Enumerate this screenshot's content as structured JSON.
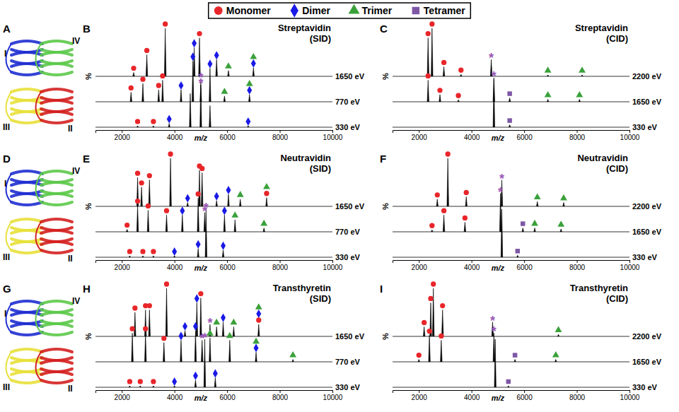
{
  "legend": [
    {
      "name": "Monomer",
      "color": "#e8262a",
      "marker": "circle"
    },
    {
      "name": "Dimer",
      "color": "#1a1ae6",
      "marker": "diamond"
    },
    {
      "name": "Trimer",
      "color": "#3aa13a",
      "marker": "triangle"
    },
    {
      "name": "Tetramer",
      "color": "#7e57a6",
      "marker": "square"
    }
  ],
  "structures": [
    {
      "panel": "A",
      "subunits": [
        {
          "label": "I",
          "color": "#1f2fd0"
        },
        {
          "label": "IV",
          "color": "#5cc94a"
        },
        {
          "label": "III",
          "color": "#e8e03a"
        },
        {
          "label": "II",
          "color": "#d42020"
        }
      ]
    },
    {
      "panel": "D",
      "subunits": [
        {
          "label": "I",
          "color": "#1f2fd0"
        },
        {
          "label": "IV",
          "color": "#5cc94a"
        },
        {
          "label": "III",
          "color": "#e8e03a"
        },
        {
          "label": "II",
          "color": "#d42020"
        }
      ]
    },
    {
      "panel": "G",
      "subunits": [
        {
          "label": "I",
          "color": "#1f2fd0"
        },
        {
          "label": "IV",
          "color": "#5cc94a"
        },
        {
          "label": "III",
          "color": "#e8e03a"
        },
        {
          "label": "II",
          "color": "#d42020"
        }
      ]
    }
  ],
  "chart_data": [
    {
      "type": "spectrum",
      "panel": "B",
      "title": "Streptavidin (SID)",
      "xlabel": "m/z",
      "ylabel": "%",
      "xlim": [
        1000,
        10000
      ],
      "xticks": [
        2000,
        4000,
        6000,
        8000,
        10000
      ],
      "ylim": [
        0,
        100
      ],
      "tick_labels": "x",
      "series": [
        {
          "name": "1650 eV",
          "x": [
            2450,
            2950,
            3650,
            4750,
            4950,
            5600,
            6050,
            7000
          ],
          "values": [
            8,
            45,
            100,
            60,
            80,
            35,
            12,
            18
          ],
          "species": [
            [
              "Monomer"
            ],
            [
              "Monomer"
            ],
            [
              "Monomer"
            ],
            [
              "Dimer"
            ],
            [
              "Monomer"
            ],
            [
              "Dimer"
            ],
            [
              "Trimer"
            ],
            [
              "Dimer",
              "Trimer"
            ]
          ]
        },
        {
          "name": "770 eV",
          "x": [
            2350,
            2800,
            3400,
            3550,
            4250,
            4700,
            5000,
            5350,
            5900,
            6850
          ],
          "values": [
            20,
            38,
            25,
            45,
            25,
            85,
            35,
            70,
            12,
            15
          ],
          "species": [
            [
              "Monomer"
            ],
            [
              "Monomer"
            ],
            [
              "Monomer"
            ],
            [
              "Monomer"
            ],
            [
              "Dimer"
            ],
            [
              "Dimer"
            ],
            [
              "*"
            ],
            [
              "Dimer"
            ],
            [
              "Trimer"
            ],
            [
              "Dimer",
              "Trimer"
            ]
          ]
        },
        {
          "name": "330 eV",
          "x": [
            2600,
            3200,
            3800,
            4600,
            5000,
            5350,
            6800
          ],
          "values": [
            3,
            3,
            8,
            70,
            100,
            45,
            3
          ],
          "species": [
            [
              "Monomer"
            ],
            [
              "Monomer"
            ],
            [
              "Dimer"
            ],
            [],
            [
              "*"
            ],
            [],
            [
              "Dimer"
            ]
          ]
        }
      ]
    },
    {
      "type": "spectrum",
      "panel": "C",
      "title": "Streptavidin (CID)",
      "xlabel": "m/z",
      "ylabel": "%",
      "xlim": [
        1000,
        10000
      ],
      "xticks": [
        2000,
        4000,
        6000,
        8000,
        10000
      ],
      "ylim": [
        0,
        100
      ],
      "tick_labels": "x",
      "series": [
        {
          "name": "2200 eV",
          "x": [
            2350,
            2500,
            2950,
            3600,
            4750,
            6900,
            8200
          ],
          "values": [
            80,
            100,
            20,
            4,
            35,
            3,
            3
          ],
          "species": [
            [
              "Monomer"
            ],
            [
              "Monomer"
            ],
            [
              "Monomer"
            ],
            [
              "Monomer"
            ],
            [
              "*"
            ],
            [
              "Trimer"
            ],
            [
              "Trimer"
            ]
          ]
        },
        {
          "name": "1650 eV",
          "x": [
            2350,
            2800,
            3500,
            4850,
            5450,
            6900,
            8100
          ],
          "values": [
            45,
            15,
            4,
            50,
            8,
            5,
            5
          ],
          "species": [
            [
              "Monomer"
            ],
            [
              "Monomer"
            ],
            [
              "Monomer"
            ],
            [
              "*"
            ],
            [
              "Tetramer"
            ],
            [
              "Trimer"
            ],
            [
              "Trimer"
            ]
          ]
        },
        {
          "name": "330 eV",
          "x": [
            4850,
            5450
          ],
          "values": [
            100,
            5
          ],
          "species": [
            [],
            [
              "Tetramer"
            ]
          ]
        }
      ]
    },
    {
      "type": "spectrum",
      "panel": "E",
      "title": "Neutravidin (SID)",
      "xlabel": "m/z",
      "ylabel": "%",
      "xlim": [
        1000,
        10000
      ],
      "xticks": [
        2000,
        4000,
        6000,
        8000,
        10000
      ],
      "ylim": [
        0,
        100
      ],
      "tick_labels": "x",
      "series": [
        {
          "name": "1650 eV",
          "x": [
            2600,
            2750,
            3050,
            3850,
            4500,
            4950,
            5050,
            5600,
            6050,
            6500,
            7500
          ],
          "values": [
            60,
            40,
            55,
            100,
            8,
            75,
            70,
            12,
            25,
            15,
            18
          ],
          "species": [
            [
              "Monomer"
            ],
            [
              "Monomer"
            ],
            [
              "Monomer"
            ],
            [
              "Monomer"
            ],
            [
              "Dimer"
            ],
            [
              "Monomer"
            ],
            [
              "Monomer"
            ],
            [
              "Dimer"
            ],
            [
              "Dimer"
            ],
            [
              "Trimer"
            ],
            [
              "Monomer",
              "Trimer"
            ]
          ]
        },
        {
          "name": "770 eV",
          "x": [
            2200,
            2600,
            3000,
            3700,
            4300,
            4900,
            5150,
            5900,
            6300,
            7400
          ],
          "values": [
            5,
            55,
            45,
            35,
            35,
            70,
            40,
            35,
            25,
            8
          ],
          "species": [
            [
              "Monomer"
            ],
            [
              "Monomer"
            ],
            [
              "Monomer"
            ],
            [
              "Monomer"
            ],
            [
              "Dimer"
            ],
            [
              "Monomer"
            ],
            [
              "*"
            ],
            [
              "Dimer"
            ],
            [
              "Trimer"
            ],
            [
              "Trimer"
            ]
          ]
        },
        {
          "name": "330 eV",
          "x": [
            2300,
            2800,
            3200,
            4000,
            4900,
            5200,
            5850
          ],
          "values": [
            3,
            3,
            3,
            3,
            18,
            100,
            15
          ],
          "species": [
            [
              "Monomer"
            ],
            [
              "Monomer"
            ],
            [
              "Monomer"
            ],
            [
              "Dimer"
            ],
            [
              "Dimer"
            ],
            [
              "*"
            ],
            [
              "Dimer"
            ]
          ]
        }
      ]
    },
    {
      "type": "spectrum",
      "panel": "F",
      "title": "Neutravidin (CID)",
      "xlabel": "m/z",
      "ylabel": "%",
      "xlim": [
        1000,
        10000
      ],
      "xticks": [
        2000,
        4000,
        6000,
        8000,
        10000
      ],
      "ylim": [
        0,
        100
      ],
      "tick_labels": "x",
      "series": [
        {
          "name": "2200 eV",
          "x": [
            2700,
            3100,
            3800,
            5150,
            6500,
            7500
          ],
          "values": [
            15,
            100,
            20,
            55,
            10,
            8
          ],
          "species": [
            [
              "Monomer"
            ],
            [
              "Monomer"
            ],
            [
              "Monomer"
            ],
            [
              "*"
            ],
            [
              "Trimer"
            ],
            [
              "Trimer"
            ]
          ]
        },
        {
          "name": "1650 eV",
          "x": [
            2500,
            2950,
            3750,
            5100,
            5950,
            6400,
            7400
          ],
          "values": [
            4,
            35,
            20,
            80,
            8,
            8,
            6
          ],
          "species": [
            [
              "Monomer"
            ],
            [
              "Monomer"
            ],
            [
              "Monomer"
            ],
            [
              "*"
            ],
            [
              "Tetramer"
            ],
            [
              "Trimer"
            ],
            [
              "Trimer"
            ]
          ]
        },
        {
          "name": "330 eV",
          "x": [
            5150,
            5750
          ],
          "values": [
            100,
            4
          ],
          "species": [
            [],
            [
              "Tetramer"
            ]
          ]
        }
      ]
    },
    {
      "type": "spectrum",
      "panel": "H",
      "title": "Transthyretin (SID)",
      "xlabel": "m/z",
      "ylabel": "%",
      "xlim": [
        1000,
        10000
      ],
      "xticks": [
        2000,
        4000,
        6000,
        8000,
        10000
      ],
      "ylim": [
        0,
        100
      ],
      "tick_labels": "x",
      "series": [
        {
          "name": "1650 eV",
          "x": [
            2500,
            2900,
            3050,
            3700,
            4400,
            4850,
            5000,
            5350,
            5600,
            5850,
            6250,
            7200
          ],
          "values": [
            50,
            55,
            55,
            100,
            12,
            70,
            80,
            25,
            20,
            30,
            20,
            25
          ],
          "species": [
            [
              "Monomer"
            ],
            [
              "Monomer"
            ],
            [
              "Monomer"
            ],
            [
              "Monomer"
            ],
            [
              "Dimer"
            ],
            [
              "Dimer"
            ],
            [
              "Monomer"
            ],
            [
              "*"
            ],
            [
              "Trimer"
            ],
            [
              "Dimer"
            ],
            [
              "Trimer"
            ],
            [
              "Monomer",
              "Dimer",
              "Trimer"
            ]
          ]
        },
        {
          "name": "770 eV",
          "x": [
            2400,
            2900,
            3600,
            4250,
            4800,
            5050,
            5350,
            6100,
            7100,
            8500
          ],
          "values": [
            60,
            60,
            40,
            45,
            65,
            45,
            50,
            45,
            20,
            5
          ],
          "species": [
            [
              "Monomer"
            ],
            [
              "Monomer"
            ],
            [
              "Monomer"
            ],
            [
              "Dimer"
            ],
            [
              "Dimer"
            ],
            [
              "*"
            ],
            [
              "Trimer"
            ],
            [
              "Trimer"
            ],
            [
              "Dimer",
              "Trimer"
            ],
            [
              "Trimer"
            ]
          ]
        },
        {
          "name": "330 eV",
          "x": [
            2300,
            2700,
            3200,
            4000,
            4800,
            5150,
            5550
          ],
          "values": [
            3,
            3,
            3,
            3,
            15,
            100,
            20
          ],
          "species": [
            [
              "Monomer"
            ],
            [
              "Monomer"
            ],
            [
              "Monomer"
            ],
            [
              "Dimer"
            ],
            [
              "Dimer"
            ],
            [
              "*"
            ],
            [
              "Dimer"
            ]
          ]
        }
      ]
    },
    {
      "type": "spectrum",
      "panel": "I",
      "title": "Transthyretin (CID)",
      "xlabel": "m/z",
      "ylabel": "%",
      "xlim": [
        1000,
        10000
      ],
      "xticks": [
        2000,
        4000,
        6000,
        8000,
        10000
      ],
      "ylim": [
        0,
        100
      ],
      "tick_labels": "x",
      "series": [
        {
          "name": "2200 eV",
          "x": [
            2200,
            2450,
            2550,
            2900,
            4800,
            7300
          ],
          "values": [
            20,
            70,
            100,
            55,
            30,
            4
          ],
          "species": [
            [
              "Monomer"
            ],
            [
              "Monomer"
            ],
            [
              "Monomer"
            ],
            [
              "Monomer"
            ],
            [
              "*"
            ],
            [
              "Trimer"
            ]
          ]
        },
        {
          "name": "1650 eV",
          "x": [
            2000,
            2400,
            2850,
            4850,
            5650,
            7200
          ],
          "values": [
            5,
            55,
            45,
            60,
            5,
            5
          ],
          "species": [
            [
              "Monomer"
            ],
            [
              "Monomer"
            ],
            [
              "Monomer"
            ],
            [
              "*"
            ],
            [
              "Tetramer"
            ],
            [
              "Trimer"
            ]
          ]
        },
        {
          "name": "330 eV",
          "x": [
            4900,
            5400
          ],
          "values": [
            100,
            3
          ],
          "species": [
            [],
            [
              "Tetramer"
            ]
          ]
        }
      ]
    }
  ]
}
